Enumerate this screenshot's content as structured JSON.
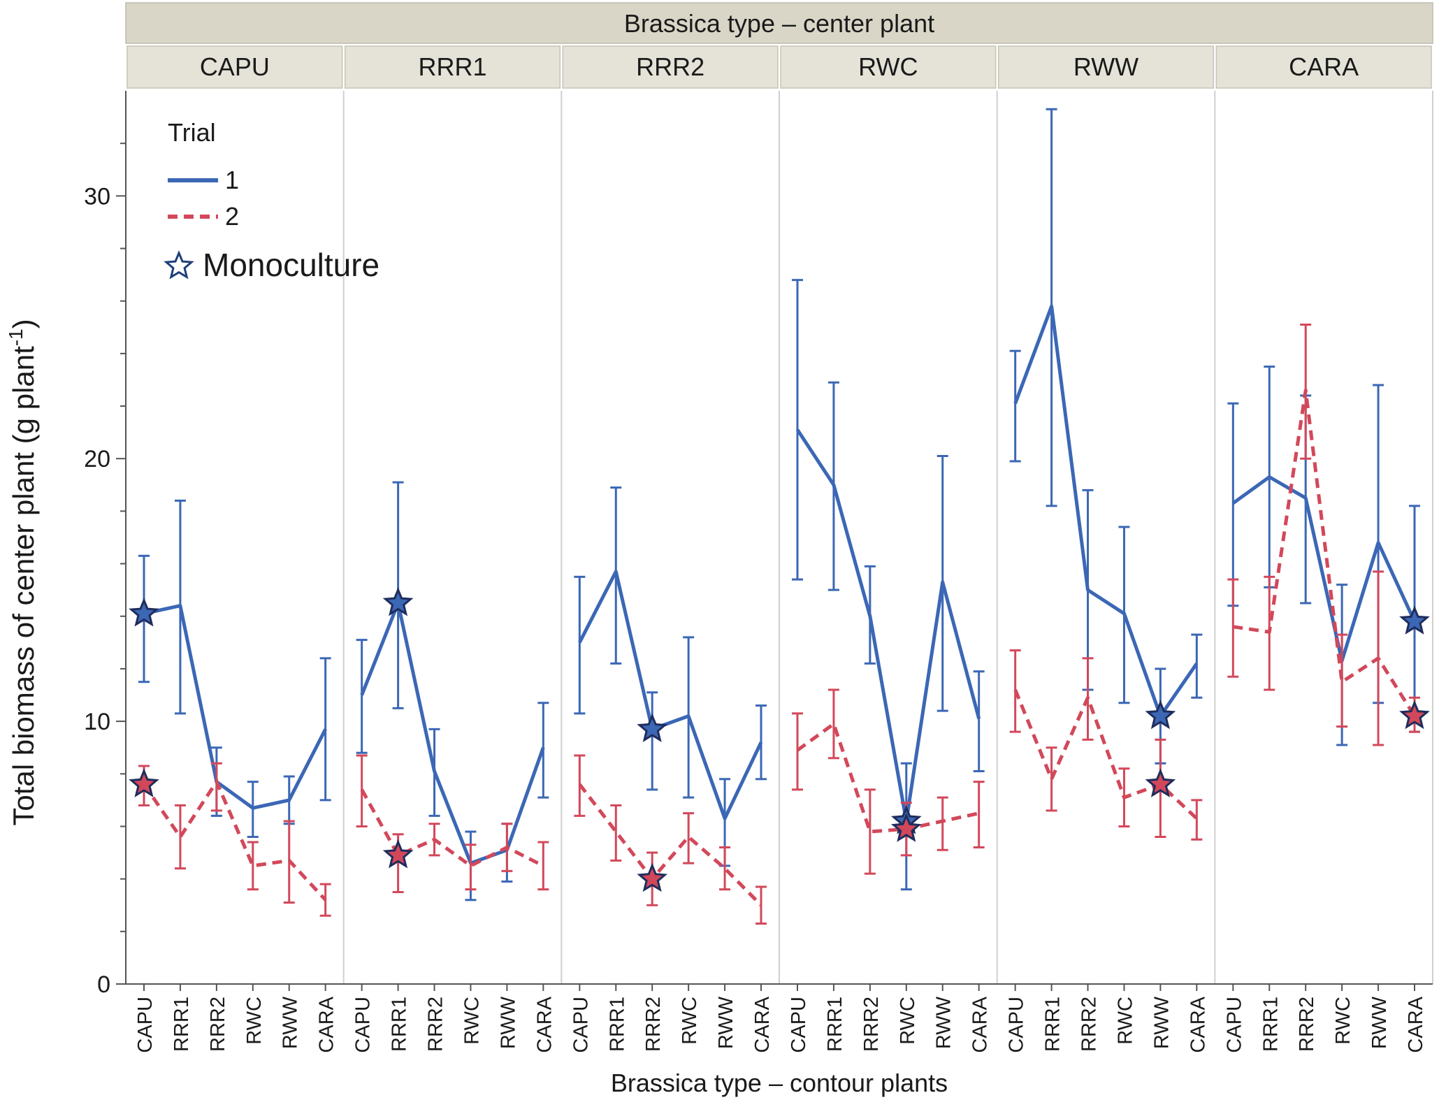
{
  "chart_data": {
    "type": "line",
    "title": "",
    "strip_title": "Brassica type – center plant",
    "panels": [
      "CAPU",
      "RRR1",
      "RRR2",
      "RWC",
      "RWW",
      "CARA"
    ],
    "categories": [
      "CAPU",
      "RRR1",
      "RRR2",
      "RWC",
      "RWW",
      "CARA"
    ],
    "xlabel": "Brassica type – contour plants",
    "ylabel": "Total biomass of center plant (g plant",
    "ylabel_sup": "-1",
    "ylabel_close": ")",
    "ylim": [
      0,
      34
    ],
    "yticks_major": [
      0,
      10,
      20,
      30
    ],
    "yticks_minor": [
      2,
      4,
      6,
      8,
      12,
      14,
      16,
      18,
      22,
      24,
      26,
      28,
      32
    ],
    "grid": false,
    "legend": {
      "title": "Trial",
      "position": "top-left",
      "items": [
        {
          "label": "1",
          "color": "#3b67b5",
          "dash": "solid"
        },
        {
          "label": "2",
          "color": "#d2485a",
          "dash": "dashed"
        }
      ],
      "marker_label": "Monoculture"
    },
    "series": [
      {
        "name": "1",
        "color": "#3b67b5",
        "dash": "solid",
        "panels": [
          {
            "values": [
              14.1,
              14.4,
              7.7,
              6.7,
              7.0,
              9.7
            ],
            "lower": [
              11.5,
              10.3,
              6.4,
              5.6,
              6.1,
              7.0
            ],
            "upper": [
              16.3,
              18.4,
              9.0,
              7.7,
              7.9,
              12.4
            ]
          },
          {
            "values": [
              11.0,
              14.5,
              8.1,
              4.6,
              5.1,
              9.0
            ],
            "lower": [
              8.8,
              10.5,
              6.4,
              3.2,
              3.9,
              7.1
            ],
            "upper": [
              13.1,
              19.1,
              9.7,
              5.8,
              6.1,
              10.7
            ]
          },
          {
            "values": [
              13.0,
              15.7,
              9.7,
              10.2,
              6.3,
              9.2
            ],
            "lower": [
              10.3,
              12.2,
              7.4,
              7.1,
              4.5,
              7.8
            ],
            "upper": [
              15.5,
              18.9,
              11.1,
              13.2,
              7.8,
              10.6
            ]
          },
          {
            "values": [
              21.1,
              19.0,
              14.0,
              6.2,
              15.3,
              10.1
            ],
            "lower": [
              15.4,
              15.0,
              12.2,
              3.6,
              10.4,
              8.1
            ],
            "upper": [
              26.8,
              22.9,
              15.9,
              8.4,
              20.1,
              11.9
            ]
          },
          {
            "values": [
              22.1,
              25.8,
              15.0,
              14.1,
              10.2,
              12.2
            ],
            "lower": [
              19.9,
              18.2,
              11.2,
              10.7,
              8.4,
              10.9
            ],
            "upper": [
              24.1,
              33.3,
              18.8,
              17.4,
              12.0,
              13.3
            ]
          },
          {
            "values": [
              18.3,
              19.3,
              18.5,
              12.3,
              16.8,
              13.8
            ],
            "lower": [
              14.4,
              15.1,
              14.5,
              9.1,
              10.7,
              9.6
            ],
            "upper": [
              22.1,
              23.5,
              22.4,
              15.2,
              22.8,
              18.2
            ]
          }
        ],
        "monoculture_index": [
          0,
          1,
          2,
          3,
          4,
          5
        ]
      },
      {
        "name": "2",
        "color": "#d2485a",
        "dash": "dashed",
        "panels": [
          {
            "values": [
              7.6,
              5.6,
              7.7,
              4.5,
              4.7,
              3.2
            ],
            "lower": [
              6.8,
              4.4,
              6.6,
              3.6,
              3.1,
              2.6
            ],
            "upper": [
              8.3,
              6.8,
              8.4,
              5.4,
              6.2,
              3.8
            ]
          },
          {
            "values": [
              7.4,
              4.9,
              5.5,
              4.5,
              5.2,
              4.5
            ],
            "lower": [
              6.0,
              3.5,
              4.9,
              3.6,
              4.3,
              3.6
            ],
            "upper": [
              8.7,
              5.7,
              6.1,
              5.3,
              6.1,
              5.4
            ]
          },
          {
            "values": [
              7.6,
              5.8,
              4.0,
              5.6,
              4.4,
              3.0
            ],
            "lower": [
              6.4,
              4.7,
              3.0,
              4.6,
              3.6,
              2.3
            ],
            "upper": [
              8.7,
              6.8,
              5.0,
              6.5,
              5.2,
              3.7
            ]
          },
          {
            "values": [
              8.9,
              9.9,
              5.8,
              5.9,
              6.2,
              6.5
            ],
            "lower": [
              7.4,
              8.6,
              4.2,
              4.9,
              5.1,
              5.2
            ],
            "upper": [
              10.3,
              11.2,
              7.4,
              6.9,
              7.1,
              7.7
            ]
          },
          {
            "values": [
              11.2,
              7.8,
              10.9,
              7.1,
              7.6,
              6.3
            ],
            "lower": [
              9.6,
              6.6,
              9.3,
              6.0,
              5.6,
              5.5
            ],
            "upper": [
              12.7,
              9.0,
              12.4,
              8.2,
              9.3,
              7.0
            ]
          },
          {
            "values": [
              13.6,
              13.4,
              22.6,
              11.5,
              12.4,
              10.2
            ],
            "lower": [
              11.7,
              11.2,
              20.0,
              9.8,
              9.1,
              9.6
            ],
            "upper": [
              15.4,
              15.5,
              25.1,
              13.3,
              15.7,
              10.9
            ]
          }
        ],
        "monoculture_index": [
          0,
          1,
          2,
          3,
          4,
          5
        ]
      }
    ]
  }
}
